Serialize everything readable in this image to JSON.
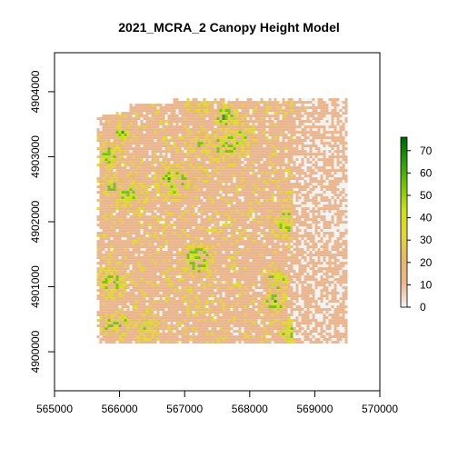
{
  "chart_data": {
    "type": "heatmap",
    "title": "2021_MCRA_2 Canopy Height Model",
    "xlabel": "",
    "ylabel": "",
    "xlim": [
      565000,
      570000
    ],
    "ylim": [
      4899400,
      4904600
    ],
    "x_ticks": [
      565000,
      566000,
      567000,
      568000,
      569000,
      570000
    ],
    "x_tick_labels": [
      "565000",
      "566000",
      "567000",
      "568000",
      "569000",
      "570000"
    ],
    "y_ticks": [
      4900000,
      4901000,
      4902000,
      4903000,
      4904000
    ],
    "y_tick_labels": [
      "4900000",
      "4901000",
      "4902000",
      "4903000",
      "4904000"
    ],
    "raster_extent": {
      "xmin": 565650,
      "xmax": 569500,
      "ymin": 4900150,
      "ymax": 4903900
    },
    "legend": {
      "min": 0,
      "max": 76,
      "ticks": [
        0,
        10,
        20,
        30,
        40,
        50,
        60,
        70
      ],
      "tick_labels": [
        "0",
        "10",
        "20",
        "30",
        "40",
        "50",
        "60",
        "70"
      ],
      "placement": "right"
    },
    "color_scale": [
      "#f2f2f2",
      "#eab68f",
      "#e6b96b",
      "#e4d63a",
      "#c9e01c",
      "#79c20f",
      "#2e9b0a",
      "#006400"
    ],
    "grid": false
  }
}
